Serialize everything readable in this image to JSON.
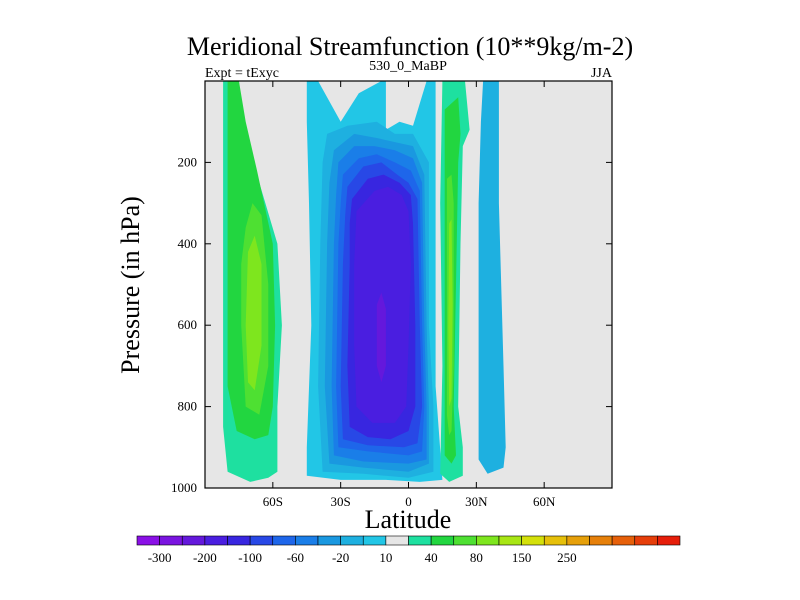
{
  "chart_data": {
    "type": "contour",
    "title": "Meridional Streamfunction (10**9kg/m-2)",
    "subtitle_left": "Expt = tExyc",
    "subtitle_center": "530_0_MaBP",
    "subtitle_right": "JJA",
    "xlabel": "Latitude",
    "ylabel": "Pressure (in hPa)",
    "x_ticks": [
      {
        "value": -60,
        "label": "60S"
      },
      {
        "value": -30,
        "label": "30S"
      },
      {
        "value": 0,
        "label": "0"
      },
      {
        "value": 30,
        "label": "30N"
      },
      {
        "value": 60,
        "label": "60N"
      }
    ],
    "y_ticks": [
      {
        "value": 200,
        "label": "200"
      },
      {
        "value": 400,
        "label": "400"
      },
      {
        "value": 600,
        "label": "600"
      },
      {
        "value": 800,
        "label": "800"
      },
      {
        "value": 1000,
        "label": "1000"
      }
    ],
    "xlim": [
      -90,
      90
    ],
    "ylim": [
      1000,
      0
    ],
    "background_color": "#e6e6e6",
    "colorbar": {
      "colors": [
        "#8a10e6",
        "#7a14e0",
        "#6418dc",
        "#4a1ee0",
        "#3826e0",
        "#2848e6",
        "#1e66ea",
        "#1a7ee8",
        "#1a98e0",
        "#1eb0e0",
        "#22c6e6",
        "#e6e6e6",
        "#1ee0a0",
        "#22d640",
        "#4ee032",
        "#7ee61e",
        "#a8e614",
        "#d4e00a",
        "#e6c00a",
        "#e6a00a",
        "#e6800a",
        "#e6600a",
        "#e63e0a",
        "#e61e0a"
      ],
      "labels": [
        {
          "after_box": 1,
          "text": "-300"
        },
        {
          "after_box": 3,
          "text": "-200"
        },
        {
          "after_box": 5,
          "text": "-100"
        },
        {
          "after_box": 7,
          "text": "-60"
        },
        {
          "after_box": 9,
          "text": "-20"
        },
        {
          "after_box": 11,
          "text": "10"
        },
        {
          "after_box": 13,
          "text": "40"
        },
        {
          "after_box": 15,
          "text": "80"
        },
        {
          "after_box": 17,
          "text": "150"
        },
        {
          "after_box": 19,
          "text": "250"
        }
      ]
    },
    "regions": [
      {
        "name": "sh-ferrel-cell-outer",
        "color": "#1ee0a0",
        "points": [
          [
            -82,
            0
          ],
          [
            -75,
            0
          ],
          [
            -73,
            100
          ],
          [
            -66,
            250
          ],
          [
            -58,
            400
          ],
          [
            -56,
            600
          ],
          [
            -58,
            800
          ],
          [
            -58,
            960
          ],
          [
            -62,
            975
          ],
          [
            -70,
            985
          ],
          [
            -80,
            960
          ],
          [
            -82,
            850
          ],
          [
            -82,
            500
          ],
          [
            -82,
            200
          ]
        ]
      },
      {
        "name": "sh-ferrel-cell-10",
        "color": "#22d640",
        "points": [
          [
            -80,
            0
          ],
          [
            -75,
            0
          ],
          [
            -72,
            100
          ],
          [
            -67,
            220
          ],
          [
            -60,
            400
          ],
          [
            -59,
            600
          ],
          [
            -60,
            800
          ],
          [
            -62,
            870
          ],
          [
            -68,
            880
          ],
          [
            -76,
            860
          ],
          [
            -80,
            750
          ],
          [
            -80,
            400
          ],
          [
            -80,
            150
          ]
        ]
      },
      {
        "name": "sh-ferrel-cell-40",
        "color": "#4ee032",
        "points": [
          [
            -72,
            360
          ],
          [
            -69,
            300
          ],
          [
            -65,
            330
          ],
          [
            -62,
            500
          ],
          [
            -62,
            700
          ],
          [
            -66,
            820
          ],
          [
            -72,
            800
          ],
          [
            -74,
            600
          ],
          [
            -74,
            450
          ]
        ]
      },
      {
        "name": "sh-ferrel-cell-core",
        "color": "#7ee61e",
        "points": [
          [
            -71,
            420
          ],
          [
            -68,
            380
          ],
          [
            -65,
            450
          ],
          [
            -65,
            650
          ],
          [
            -68,
            760
          ],
          [
            -71,
            740
          ],
          [
            -72,
            600
          ]
        ]
      },
      {
        "name": "hadley-cell-sh-edge",
        "color": "#22c6e6",
        "points": [
          [
            -45,
            0
          ],
          [
            -40,
            0
          ],
          [
            -30,
            100
          ],
          [
            -22,
            30
          ],
          [
            -12,
            0
          ],
          [
            -10,
            0
          ],
          [
            -10,
            120
          ],
          [
            -4,
            100
          ],
          [
            2,
            110
          ],
          [
            8,
            0
          ],
          [
            12,
            0
          ],
          [
            12,
            750
          ],
          [
            15,
            980
          ],
          [
            5,
            985
          ],
          [
            -10,
            980
          ],
          [
            -30,
            980
          ],
          [
            -45,
            970
          ],
          [
            -45,
            900
          ],
          [
            -43,
            600
          ],
          [
            -44,
            300
          ],
          [
            -45,
            100
          ]
        ]
      },
      {
        "name": "hadley-cell-sh-2",
        "color": "#1eb0e0",
        "points": [
          [
            -36,
            130
          ],
          [
            -27,
            110
          ],
          [
            -14,
            100
          ],
          [
            -6,
            130
          ],
          [
            2,
            130
          ],
          [
            9,
            200
          ],
          [
            9,
            600
          ],
          [
            11,
            800
          ],
          [
            11,
            960
          ],
          [
            0,
            975
          ],
          [
            -20,
            965
          ],
          [
            -38,
            960
          ],
          [
            -40,
            750
          ],
          [
            -39,
            400
          ],
          [
            -38,
            200
          ]
        ]
      },
      {
        "name": "hadley-cell-sh-3",
        "color": "#1a98e0",
        "points": [
          [
            -33,
            170
          ],
          [
            -24,
            130
          ],
          [
            -14,
            140
          ],
          [
            -6,
            150
          ],
          [
            2,
            160
          ],
          [
            7,
            230
          ],
          [
            8,
            600
          ],
          [
            9,
            800
          ],
          [
            9,
            940
          ],
          [
            0,
            960
          ],
          [
            -20,
            950
          ],
          [
            -35,
            940
          ],
          [
            -37,
            750
          ],
          [
            -36,
            400
          ],
          [
            -35,
            250
          ]
        ]
      },
      {
        "name": "hadley-cell-sh-4",
        "color": "#1a7ee8",
        "points": [
          [
            -31,
            200
          ],
          [
            -24,
            160
          ],
          [
            -15,
            160
          ],
          [
            -6,
            170
          ],
          [
            2,
            190
          ],
          [
            6,
            250
          ],
          [
            7,
            600
          ],
          [
            8,
            800
          ],
          [
            8,
            930
          ],
          [
            0,
            940
          ],
          [
            -20,
            935
          ],
          [
            -33,
            920
          ],
          [
            -34,
            750
          ],
          [
            -33,
            400
          ],
          [
            -32,
            280
          ]
        ]
      },
      {
        "name": "hadley-cell-sh-5",
        "color": "#1e66ea",
        "points": [
          [
            -29,
            230
          ],
          [
            -22,
            190
          ],
          [
            -14,
            180
          ],
          [
            -6,
            200
          ],
          [
            1,
            220
          ],
          [
            5,
            270
          ],
          [
            6,
            600
          ],
          [
            7,
            800
          ],
          [
            6,
            910
          ],
          [
            0,
            920
          ],
          [
            -18,
            910
          ],
          [
            -31,
            900
          ],
          [
            -32,
            750
          ],
          [
            -31,
            400
          ],
          [
            -30,
            300
          ]
        ]
      },
      {
        "name": "hadley-cell-sh-6",
        "color": "#2848e6",
        "points": [
          [
            -27,
            260
          ],
          [
            -20,
            210
          ],
          [
            -12,
            200
          ],
          [
            -5,
            230
          ],
          [
            0,
            250
          ],
          [
            4,
            290
          ],
          [
            5,
            600
          ],
          [
            6,
            800
          ],
          [
            4,
            890
          ],
          [
            -2,
            900
          ],
          [
            -18,
            895
          ],
          [
            -29,
            880
          ],
          [
            -30,
            750
          ],
          [
            -29,
            450
          ],
          [
            -28,
            330
          ]
        ]
      },
      {
        "name": "hadley-cell-sh-7",
        "color": "#3826e0",
        "points": [
          [
            -25,
            290
          ],
          [
            -18,
            240
          ],
          [
            -11,
            230
          ],
          [
            -4,
            250
          ],
          [
            1,
            280
          ],
          [
            2,
            350
          ],
          [
            3,
            600
          ],
          [
            3,
            800
          ],
          [
            0,
            860
          ],
          [
            -8,
            880
          ],
          [
            -18,
            875
          ],
          [
            -26,
            850
          ],
          [
            -27,
            700
          ],
          [
            -26,
            450
          ],
          [
            -26,
            350
          ]
        ]
      },
      {
        "name": "hadley-cell-sh-8",
        "color": "#4a1ee0",
        "points": [
          [
            -23,
            320
          ],
          [
            -15,
            270
          ],
          [
            -9,
            260
          ],
          [
            -3,
            280
          ],
          [
            0,
            320
          ],
          [
            1,
            450
          ],
          [
            0,
            650
          ],
          [
            -1,
            800
          ],
          [
            -6,
            840
          ],
          [
            -16,
            840
          ],
          [
            -23,
            800
          ],
          [
            -24,
            650
          ],
          [
            -24,
            450
          ]
        ]
      },
      {
        "name": "hadley-cell-sh-core",
        "color": "#6418dc",
        "points": [
          [
            -14,
            550
          ],
          [
            -12,
            520
          ],
          [
            -10,
            560
          ],
          [
            -10,
            700
          ],
          [
            -12,
            740
          ],
          [
            -14,
            700
          ]
        ]
      },
      {
        "name": "nh-ferrel-cell-outer",
        "color": "#1ee0a0",
        "points": [
          [
            15,
            0
          ],
          [
            25,
            0
          ],
          [
            26,
            60
          ],
          [
            27,
            120
          ],
          [
            24,
            160
          ],
          [
            23,
            400
          ],
          [
            22,
            800
          ],
          [
            24,
            900
          ],
          [
            24,
            970
          ],
          [
            18,
            985
          ],
          [
            14,
            965
          ],
          [
            15,
            700
          ],
          [
            14,
            300
          ]
        ]
      },
      {
        "name": "nh-ferrel-cell-10",
        "color": "#22d640",
        "points": [
          [
            16,
            70
          ],
          [
            22,
            40
          ],
          [
            23,
            130
          ],
          [
            22,
            200
          ],
          [
            21,
            500
          ],
          [
            20,
            800
          ],
          [
            21,
            920
          ],
          [
            19,
            940
          ],
          [
            16,
            920
          ],
          [
            16,
            600
          ],
          [
            16,
            300
          ]
        ]
      },
      {
        "name": "nh-ferrel-cell-40",
        "color": "#4ee032",
        "points": [
          [
            17,
            240
          ],
          [
            19,
            230
          ],
          [
            20,
            300
          ],
          [
            20,
            700
          ],
          [
            19,
            860
          ],
          [
            18,
            870
          ],
          [
            17,
            820
          ],
          [
            17,
            500
          ]
        ]
      },
      {
        "name": "nh-ferrel-cell-core",
        "color": "#7ee61e",
        "points": [
          [
            18,
            350
          ],
          [
            19,
            340
          ],
          [
            19.5,
            550
          ],
          [
            19,
            780
          ],
          [
            18,
            800
          ],
          [
            17.6,
            600
          ]
        ]
      },
      {
        "name": "nh-polar-cell",
        "color": "#1eb0e0",
        "points": [
          [
            33,
            0
          ],
          [
            40,
            0
          ],
          [
            40,
            300
          ],
          [
            42,
            700
          ],
          [
            43,
            900
          ],
          [
            42,
            950
          ],
          [
            35,
            965
          ],
          [
            31,
            930
          ],
          [
            31,
            700
          ],
          [
            31,
            300
          ],
          [
            32,
            100
          ]
        ]
      }
    ]
  }
}
